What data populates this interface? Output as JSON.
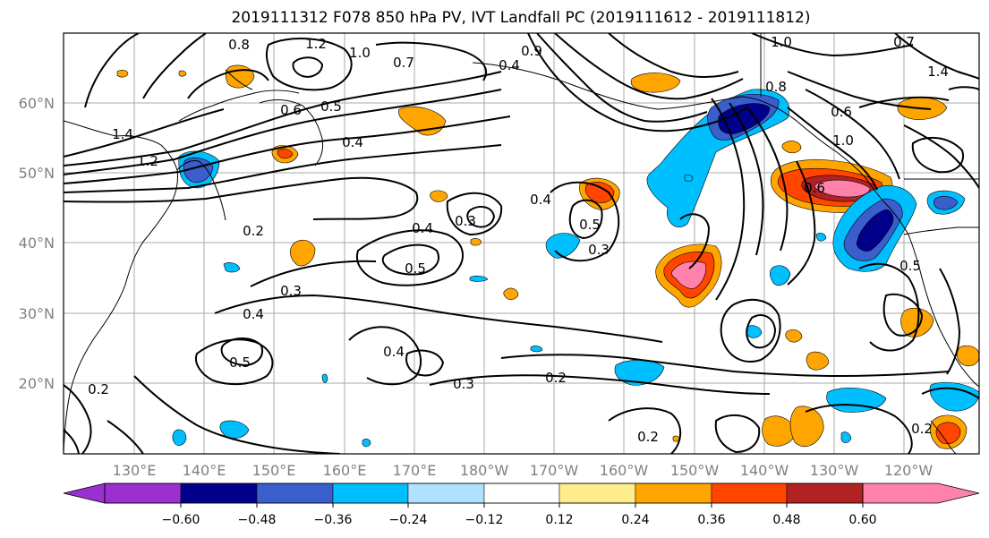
{
  "title": "2019111312 F078 850 hPa PV, IVT Landfall PC (2019111612 - 2019111812)",
  "lat_labels": [
    "60°N",
    "50°N",
    "40°N",
    "30°N",
    "20°N"
  ],
  "lon_labels": [
    "130°E",
    "140°E",
    "150°E",
    "160°E",
    "170°E",
    "180°W",
    "170°W",
    "160°W",
    "150°W",
    "140°W",
    "130°W",
    "120°W"
  ],
  "colorbar": {
    "colors": [
      "#9b30d0",
      "#00008b",
      "#3a5fcd",
      "#00bfff",
      "#b0e2ff",
      "#ffffff",
      "#ffec8b",
      "#ffa500",
      "#ff4500",
      "#b22222",
      "#ff82ab"
    ],
    "tick_labels": [
      "−0.60",
      "−0.48",
      "−0.36",
      "−0.24",
      "−0.12",
      "0.12",
      "0.24",
      "0.36",
      "0.48",
      "0.60"
    ]
  },
  "contour_labels": [
    "0.8",
    "1.2",
    "1.0",
    "0.7",
    "0.4",
    "0.9",
    "1.0",
    "0.7",
    "0.8",
    "0.6",
    "1.0",
    "0.6",
    "1.4",
    "0.6",
    "0.5",
    "0.4",
    "1.4",
    "1.2",
    "0.2",
    "0.4",
    "0.3",
    "0.4",
    "0.5",
    "0.3",
    "0.5",
    "0.3",
    "0.4",
    "0.5",
    "0.4",
    "0.3",
    "0.2",
    "0.5",
    "0.2",
    "0.2",
    "0.2"
  ]
}
